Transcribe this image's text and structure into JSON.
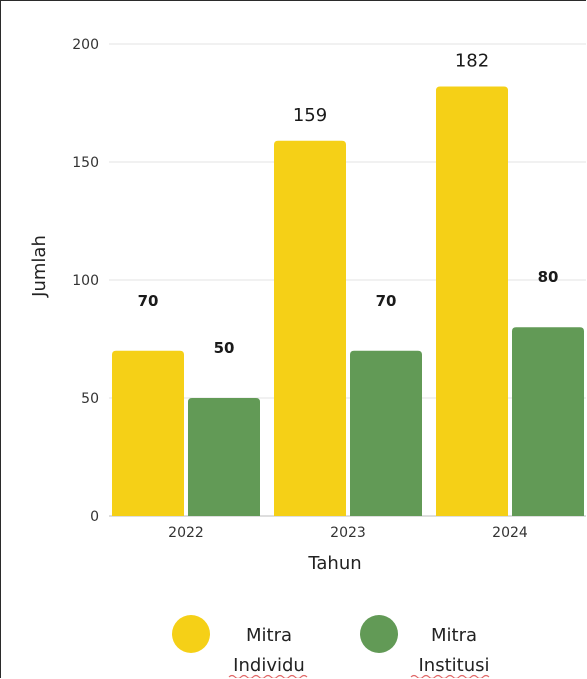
{
  "chart_data": {
    "type": "bar",
    "categories": [
      "2022",
      "2023",
      "2024"
    ],
    "series": [
      {
        "name": "Mitra Individu",
        "values": [
          70,
          159,
          182
        ],
        "color": "#F5D017",
        "labels": [
          "70",
          "159",
          "182"
        ]
      },
      {
        "name": "Mitra Institusi",
        "values": [
          50,
          70,
          80
        ],
        "color": "#629A56",
        "labels": [
          "50",
          "70",
          "80"
        ]
      }
    ],
    "xlabel": "Tahun",
    "ylabel": "Jumlah",
    "ylim": [
      0,
      200
    ],
    "yticks": [
      "0",
      "50",
      "100",
      "150",
      "200"
    ],
    "grid": true,
    "legend_position": "bottom",
    "legend": [
      {
        "line1": "Mitra",
        "line2": "Individu",
        "color": "#F5D017"
      },
      {
        "line1": "Mitra",
        "line2": "Institusi",
        "color": "#629A56"
      }
    ]
  }
}
